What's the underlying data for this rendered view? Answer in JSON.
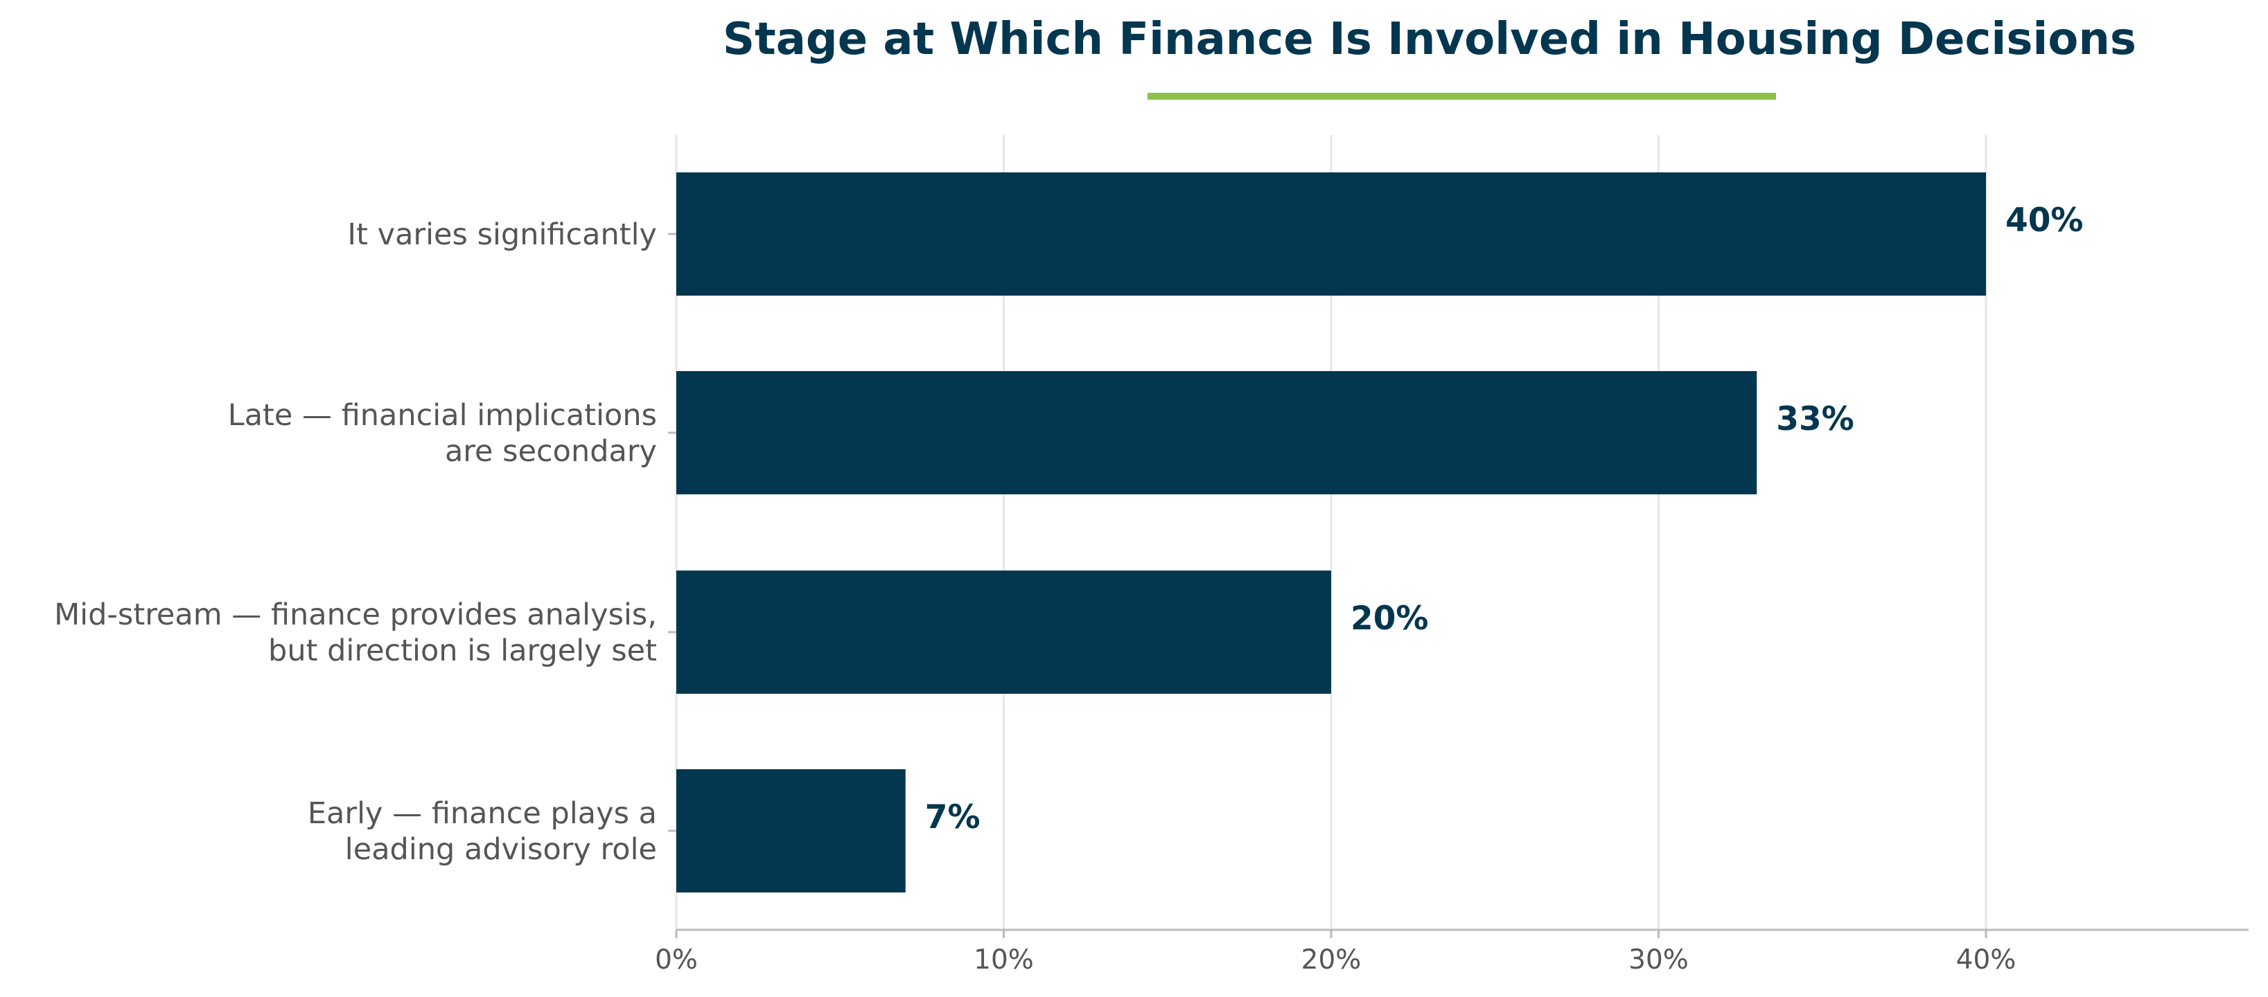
{
  "colors": {
    "bar": "#03374f",
    "title": "#03374f",
    "accent_underline": "#8bc34a",
    "grid": "#e6e6e6",
    "axis": "#bbbbbb",
    "label_text": "#555555"
  },
  "chart_data": {
    "type": "bar",
    "orientation": "horizontal",
    "title": "Stage at Which Finance Is Involved in Housing Decisions",
    "xlabel": "",
    "ylabel": "",
    "categories": [
      [
        "It varies significantly"
      ],
      [
        "Late — financial implications",
        "are secondary"
      ],
      [
        "Mid-stream — finance provides analysis,",
        "but direction is largely set"
      ],
      [
        "Early — finance plays a",
        "leading advisory role"
      ]
    ],
    "values": [
      40,
      33,
      20,
      7
    ],
    "value_labels": [
      "40%",
      "33%",
      "20%",
      "7%"
    ],
    "x_ticks": [
      0,
      10,
      20,
      30,
      40
    ],
    "x_tick_labels": [
      "0%",
      "10%",
      "20%",
      "30%",
      "40%"
    ],
    "xlim": [
      0,
      48
    ],
    "grid": "vertical",
    "legend": "none"
  }
}
